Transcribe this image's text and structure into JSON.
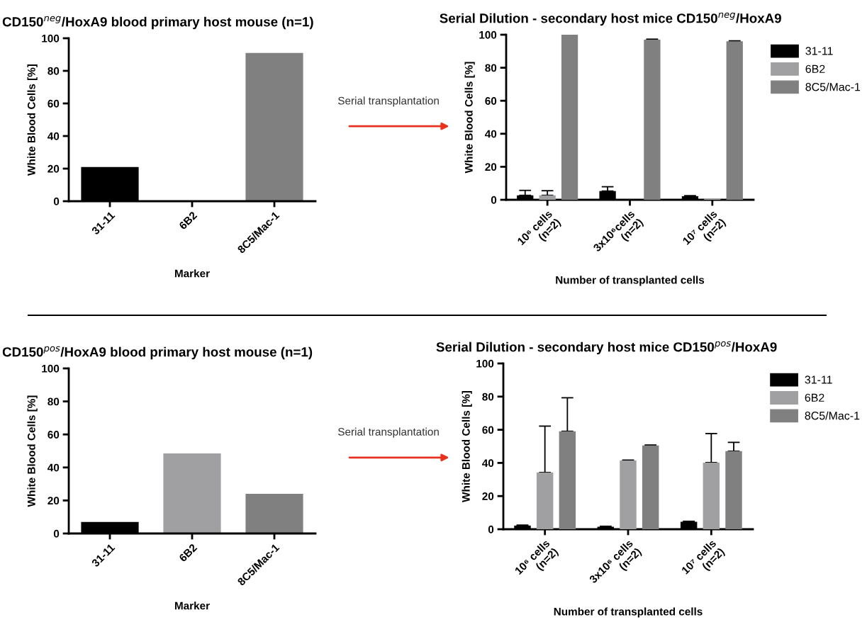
{
  "chart_data": [
    {
      "type": "bar",
      "title": "CD150$^{neg}$/HoxA9 blood primary host mouse (n=1)",
      "xlabel": "Marker",
      "ylabel": "White Blood Cells [%]",
      "categories": [
        "31-11",
        "6B2",
        "8C5/Mac-1"
      ],
      "values": [
        21,
        0,
        91
      ],
      "colors": [
        "#000000",
        "#a0a0a2",
        "#808080"
      ],
      "ylim": [
        0,
        100
      ],
      "yticks": [
        0,
        20,
        40,
        60,
        80,
        100
      ],
      "annotations": [
        "Serial transplantation"
      ]
    },
    {
      "type": "bar",
      "title": "Serial Dilution - secondary host mice CD150$^{neg}$/HoxA9",
      "xlabel": "Number of transplanted cells",
      "ylabel": "White Blood Cells [%]",
      "categories": [
        "10⁶ cells\n(n=2)",
        "3x10⁶cells\n(n=2)",
        "10⁷ cells\n(n=2)"
      ],
      "ylim": [
        0,
        100
      ],
      "yticks": [
        0,
        20,
        40,
        60,
        80,
        100
      ],
      "legend": "right",
      "series": [
        {
          "name": "31-11",
          "color": "#000000",
          "values": [
            2.7,
            5.3,
            2.2
          ],
          "errors": [
            3,
            2.6,
            0.3
          ]
        },
        {
          "name": "6B2",
          "color": "#a0a0a2",
          "values": [
            2.7,
            null,
            0.9
          ],
          "errors": [
            2.8,
            null,
            null
          ]
        },
        {
          "name": "8C5/Mac-1",
          "color": "#808080",
          "values": [
            100,
            97,
            96
          ],
          "errors": [
            null,
            0.3,
            0.3
          ]
        }
      ]
    },
    {
      "type": "bar",
      "title": "CD150$^{pos}$/HoxA9 blood primary host mouse (n=1)",
      "xlabel": "Marker",
      "ylabel": "White Blood Cells [%]",
      "categories": [
        "31-11",
        "6B2",
        "8C5/Mac-1"
      ],
      "values": [
        7,
        48.5,
        24
      ],
      "colors": [
        "#000000",
        "#a0a0a2",
        "#808080"
      ],
      "ylim": [
        0,
        100
      ],
      "yticks": [
        0,
        20,
        40,
        60,
        80,
        100
      ],
      "annotations": [
        "Serial transplantation"
      ]
    },
    {
      "type": "bar",
      "title": "Serial Dilution - secondary host mice CD150$^{pos}$/HoxA9",
      "xlabel": "Number of transplanted cells",
      "ylabel": "White Blood Cells [%]",
      "categories": [
        "10⁶ cells\n(n=2)",
        "3x10⁶ cells\n(n=2)",
        "10⁷ cells\n(n=2)"
      ],
      "ylim": [
        0,
        100
      ],
      "yticks": [
        0,
        20,
        40,
        60,
        80,
        100
      ],
      "legend": "right",
      "series": [
        {
          "name": "31-11",
          "color": "#000000",
          "values": [
            2.2,
            1.5,
            4.5
          ],
          "errors": [
            0.3,
            0.3,
            0.3
          ]
        },
        {
          "name": "6B2",
          "color": "#a0a0a2",
          "values": [
            34.2,
            41.4,
            40.2
          ],
          "errors": [
            28,
            0.3,
            17.5
          ]
        },
        {
          "name": "8C5/Mac-1",
          "color": "#808080",
          "values": [
            59.1,
            50.5,
            47.1
          ],
          "errors": [
            20.2,
            0.3,
            5.3
          ]
        }
      ]
    }
  ]
}
